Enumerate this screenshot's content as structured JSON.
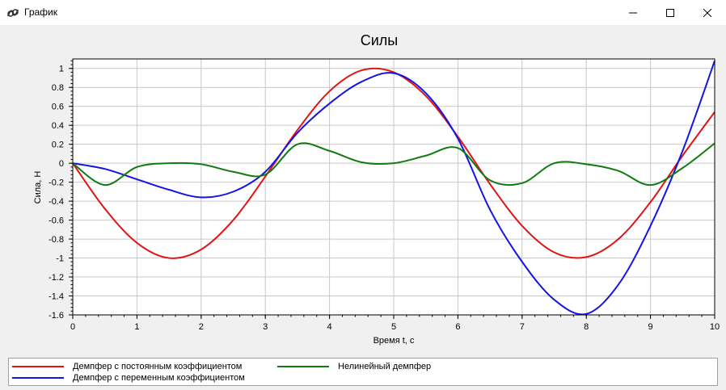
{
  "window": {
    "title": "График"
  },
  "colors": {
    "red": "#e11414",
    "blue": "#1414e6",
    "green": "#117a11",
    "grid": "#c8c8c8"
  },
  "chart_data": {
    "type": "line",
    "title": "Силы",
    "xlabel": "Время t, с",
    "ylabel": "Сила, Н",
    "xlim": [
      0,
      10
    ],
    "ylim": [
      -1.6,
      1.1
    ],
    "grid": true,
    "legend_position": "bottom",
    "x_ticks": [
      "0",
      "1",
      "2",
      "3",
      "4",
      "5",
      "6",
      "7",
      "8",
      "9",
      "10"
    ],
    "y_ticks": [
      "1",
      "0.8",
      "0.6",
      "0.4",
      "0.2",
      "0",
      "-0.2",
      "-0.4",
      "-0.6",
      "-0.8",
      "-1",
      "-1.2",
      "-1.4",
      "-1.6"
    ],
    "x": [
      0,
      0.5,
      1,
      1.5,
      2,
      2.5,
      3,
      3.5,
      4,
      4.5,
      5,
      5.5,
      6,
      6.5,
      7,
      7.5,
      8,
      8.5,
      9,
      9.5,
      10
    ],
    "series": [
      {
        "name": "Демпфер с постоянным коэффициентом",
        "color": "#e11414",
        "values": [
          0,
          -0.48,
          -0.84,
          -1.0,
          -0.91,
          -0.6,
          -0.14,
          0.35,
          0.76,
          0.98,
          0.96,
          0.71,
          0.28,
          -0.22,
          -0.66,
          -0.94,
          -0.99,
          -0.8,
          -0.41,
          0.08,
          0.54
        ]
      },
      {
        "name": "Демпфер с переменным коэффициентом",
        "color": "#1414e6",
        "values": [
          0,
          -0.06,
          -0.17,
          -0.28,
          -0.36,
          -0.3,
          -0.09,
          0.32,
          0.63,
          0.86,
          0.95,
          0.74,
          0.26,
          -0.49,
          -1.04,
          -1.44,
          -1.59,
          -1.28,
          -0.66,
          0.13,
          1.08
        ]
      },
      {
        "name": "Нелинейный демпфер",
        "color": "#117a11",
        "values": [
          0,
          -0.23,
          -0.04,
          0.0,
          -0.01,
          -0.09,
          -0.12,
          0.2,
          0.13,
          0.01,
          0.0,
          0.08,
          0.16,
          -0.18,
          -0.21,
          0.0,
          -0.01,
          -0.08,
          -0.23,
          -0.05,
          0.21
        ]
      }
    ]
  }
}
